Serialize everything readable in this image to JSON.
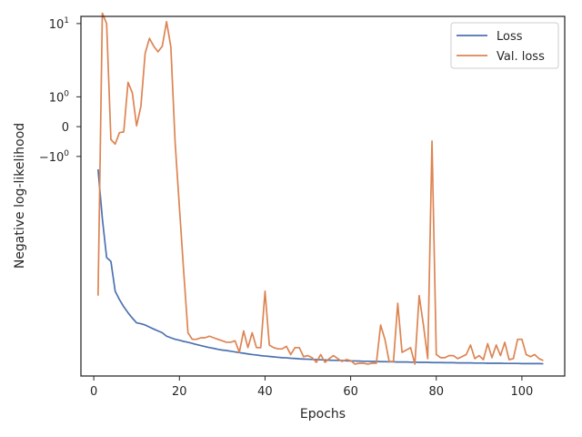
{
  "chart_data": {
    "type": "line",
    "xlabel": "Epochs",
    "ylabel": "Negative log-likelihood",
    "yscale": "symlog",
    "xlim": [
      -3,
      110
    ],
    "ylim": [
      -330,
      12
    ],
    "x_ticks": [
      0,
      20,
      40,
      60,
      80,
      100
    ],
    "y_ticks": [
      {
        "value": 10,
        "base": "10",
        "exp": "1",
        "sign": ""
      },
      {
        "value": 1,
        "base": "10",
        "exp": "0",
        "sign": ""
      },
      {
        "value": 0,
        "base": "0",
        "exp": "",
        "sign": ""
      },
      {
        "value": -1,
        "base": "10",
        "exp": "0",
        "sign": "−"
      }
    ],
    "grid": false,
    "legend_position": "top-right",
    "series": [
      {
        "name": "Loss",
        "color": "#4c72b0",
        "x": [
          1,
          2,
          3,
          4,
          5,
          6,
          7,
          8,
          9,
          10,
          11,
          12,
          13,
          14,
          15,
          16,
          17,
          18,
          19,
          20,
          21,
          22,
          23,
          24,
          25,
          26,
          27,
          28,
          29,
          30,
          31,
          32,
          33,
          34,
          35,
          36,
          37,
          38,
          39,
          40,
          41,
          42,
          43,
          44,
          45,
          46,
          47,
          48,
          49,
          50,
          51,
          52,
          53,
          54,
          55,
          56,
          57,
          58,
          59,
          60,
          61,
          62,
          63,
          64,
          65,
          66,
          67,
          68,
          69,
          70,
          71,
          72,
          73,
          74,
          75,
          76,
          77,
          78,
          79,
          80,
          81,
          82,
          83,
          84,
          85,
          86,
          87,
          88,
          89,
          90,
          91,
          92,
          93,
          94,
          95,
          96,
          97,
          98,
          99,
          100,
          101,
          102,
          103,
          104,
          105
        ],
        "values": [
          -1.7,
          -7.5,
          -20,
          -22,
          -45,
          -55,
          -65,
          -75,
          -85,
          -95,
          -97,
          -100,
          -105,
          -110,
          -115,
          -120,
          -130,
          -135,
          -140,
          -143,
          -147,
          -150,
          -154,
          -158,
          -162,
          -166,
          -170,
          -173,
          -177,
          -180,
          -182,
          -185,
          -188,
          -191,
          -194,
          -197,
          -200,
          -202,
          -205,
          -207,
          -209,
          -211,
          -213,
          -215,
          -216,
          -218,
          -219,
          -221,
          -222,
          -223,
          -224,
          -225,
          -226,
          -227,
          -228,
          -229,
          -229,
          -230,
          -231,
          -232,
          -232,
          -233,
          -234,
          -234,
          -235,
          -235,
          -236,
          -236,
          -237,
          -237,
          -238,
          -238,
          -238,
          -239,
          -239,
          -240,
          -240,
          -240,
          -241,
          -241,
          -241,
          -242,
          -242,
          -242,
          -243,
          -243,
          -243,
          -243,
          -244,
          -244,
          -244,
          -245,
          -245,
          -245,
          -245,
          -246,
          -246,
          -246,
          -246,
          -247,
          -247,
          -247,
          -247,
          -247,
          -248
        ]
      },
      {
        "name": "Val. loss",
        "color": "#dd8452",
        "x": [
          1,
          2,
          3,
          4,
          5,
          6,
          7,
          8,
          9,
          10,
          11,
          12,
          13,
          14,
          15,
          16,
          17,
          18,
          19,
          20,
          21,
          22,
          23,
          24,
          25,
          26,
          27,
          28,
          29,
          30,
          31,
          32,
          33,
          34,
          35,
          36,
          37,
          38,
          39,
          40,
          41,
          42,
          43,
          44,
          45,
          46,
          47,
          48,
          49,
          50,
          51,
          52,
          53,
          54,
          55,
          56,
          57,
          58,
          59,
          60,
          61,
          62,
          63,
          64,
          65,
          66,
          67,
          68,
          69,
          70,
          71,
          72,
          73,
          74,
          75,
          76,
          77,
          78,
          79,
          80,
          81,
          82,
          83,
          84,
          85,
          86,
          87,
          88,
          89,
          90,
          91,
          92,
          93,
          94,
          95,
          96,
          97,
          98,
          99,
          100,
          101,
          102,
          103,
          104,
          105
        ],
        "values": [
          -50,
          13,
          10,
          -0.35,
          -0.5,
          -0.15,
          -0.13,
          1.8,
          1.2,
          0.02,
          0.6,
          4.5,
          6.8,
          5.5,
          4.7,
          5.5,
          10.5,
          5.4,
          -0.45,
          -5.5,
          -28,
          -120,
          -140,
          -140,
          -135,
          -135,
          -130,
          -135,
          -140,
          -145,
          -150,
          -150,
          -145,
          -190,
          -115,
          -170,
          -120,
          -170,
          -170,
          -45,
          -160,
          -170,
          -175,
          -175,
          -165,
          -200,
          -170,
          -170,
          -210,
          -205,
          -215,
          -240,
          -200,
          -240,
          -220,
          -205,
          -220,
          -235,
          -225,
          -230,
          -250,
          -245,
          -245,
          -250,
          -245,
          -245,
          -100,
          -140,
          -235,
          -235,
          -60,
          -190,
          -180,
          -170,
          -250,
          -50,
          -100,
          -220,
          -0.4,
          -200,
          -215,
          -215,
          -205,
          -205,
          -220,
          -210,
          -200,
          -160,
          -220,
          -205,
          -225,
          -155,
          -215,
          -160,
          -205,
          -150,
          -225,
          -220,
          -140,
          -140,
          -200,
          -210,
          -200,
          -220,
          -230
        ]
      }
    ]
  }
}
